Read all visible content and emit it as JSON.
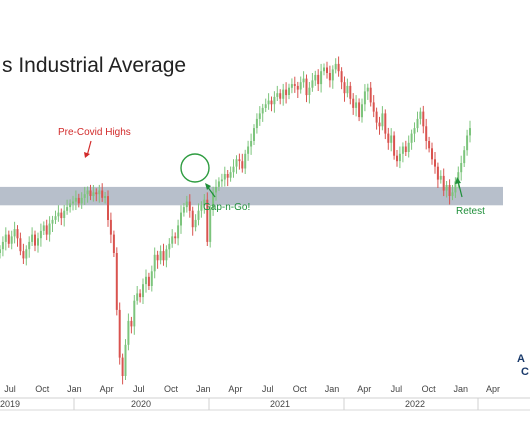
{
  "chart_data": {
    "type": "candlestick",
    "title": "s Industrial Average",
    "annotations": {
      "pre_covid_highs": "Pre-Covid Highs",
      "gap_n_go": "Gap-n-Go!",
      "retest": "Retest"
    },
    "x_ticks": [
      "Jul",
      "Oct",
      "Jan",
      "Apr",
      "Jul",
      "Oct",
      "Jan",
      "Apr",
      "Jul",
      "Oct",
      "Jan",
      "Apr",
      "Jul",
      "Oct",
      "Jan",
      "Apr"
    ],
    "years": [
      "2019",
      "2020",
      "2021",
      "2022"
    ],
    "logo": [
      "A",
      "C"
    ],
    "resistance_zone": {
      "from": 28500,
      "to": 29500
    },
    "ylim": [
      18000,
      37500
    ],
    "up_color": "#7cc47c",
    "down_color": "#d9534f",
    "zone_color": "#aab4c2",
    "circle_color": "#2e9c40",
    "arrow_red": "#d22b2b",
    "arrow_green": "#1f8f3a",
    "weekly_close": [
      26100,
      26500,
      26900,
      26400,
      26800,
      27200,
      26700,
      26000,
      25600,
      26100,
      26500,
      26900,
      26300,
      26700,
      27100,
      27400,
      26900,
      27500,
      27700,
      27900,
      28100,
      27800,
      28200,
      28400,
      28600,
      28700,
      28900,
      28600,
      28900,
      29100,
      29300,
      29000,
      29200,
      29100,
      29300,
      28900,
      29000,
      27700,
      26900,
      25900,
      22800,
      20200,
      19200,
      20900,
      22200,
      21900,
      23300,
      23700,
      23500,
      24200,
      24600,
      24100,
      24900,
      25800,
      25500,
      26000,
      25500,
      26100,
      26400,
      26800,
      26700,
      27400,
      28100,
      28400,
      28700,
      28200,
      27300,
      27700,
      28200,
      28500,
      28800,
      26500,
      28300,
      29200,
      29500,
      29800,
      29900,
      30200,
      30000,
      30300,
      30600,
      31000,
      30900,
      30500,
      31300,
      31700,
      32000,
      32700,
      33200,
      33500,
      33800,
      34000,
      34200,
      34000,
      34400,
      34600,
      34300,
      34800,
      34500,
      34900,
      35100,
      35000,
      34800,
      35200,
      35400,
      34500,
      34900,
      35300,
      35600,
      35100,
      35800,
      36000,
      35700,
      35300,
      35900,
      36200,
      35800,
      35200,
      34600,
      35000,
      34300,
      33800,
      34100,
      33300,
      34000,
      34700,
      34900,
      34100,
      33600,
      33000,
      32800,
      33500,
      32400,
      31900,
      32300,
      31200,
      30900,
      31300,
      31700,
      31400,
      31900,
      32400,
      32700,
      33200,
      33600,
      32800,
      32000,
      31600,
      31000,
      30600,
      29900,
      30100,
      29300,
      29600,
      29000,
      29200,
      29800,
      30300,
      30800,
      31500,
      32300,
      32700
    ]
  }
}
